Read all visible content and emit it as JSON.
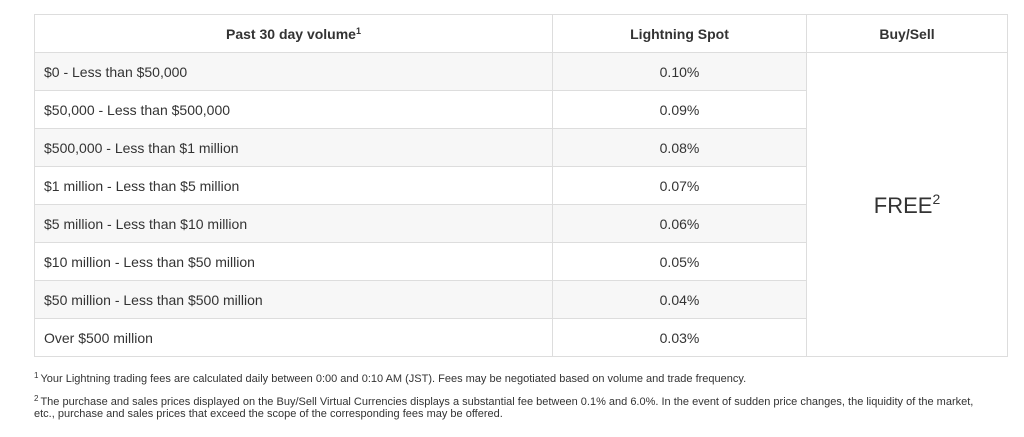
{
  "table": {
    "headers": {
      "volume": "Past 30 day volume",
      "volume_note": "1",
      "lightning_spot": "Lightning Spot",
      "buy_sell": "Buy/Sell"
    },
    "rows": [
      {
        "volume": "$0 - Less than $50,000",
        "fee": "0.10%"
      },
      {
        "volume": "$50,000 - Less than $500,000",
        "fee": "0.09%"
      },
      {
        "volume": "$500,000 - Less than $1 million",
        "fee": "0.08%"
      },
      {
        "volume": "$1 million - Less than $5 million",
        "fee": "0.07%"
      },
      {
        "volume": "$5 million - Less than $10 million",
        "fee": "0.06%"
      },
      {
        "volume": "$10 million - Less than $50 million",
        "fee": "0.05%"
      },
      {
        "volume": "$50 million - Less than $500 million",
        "fee": "0.04%"
      },
      {
        "volume": "Over $500 million",
        "fee": "0.03%"
      }
    ],
    "buy_sell_value": "FREE",
    "buy_sell_note": "2"
  },
  "footnotes": [
    {
      "marker": "1",
      "text": "Your Lightning trading fees are calculated daily between 0:00 and 0:10 AM (JST). Fees may be negotiated based on volume and trade frequency."
    },
    {
      "marker": "2",
      "text": "The purchase and sales prices displayed on the Buy/Sell Virtual Currencies displays a substantial fee between 0.1% and 6.0%. In the event of sudden price changes, the liquidity of the market, etc., purchase and sales prices that exceed the scope of the corresponding fees may be offered."
    }
  ]
}
